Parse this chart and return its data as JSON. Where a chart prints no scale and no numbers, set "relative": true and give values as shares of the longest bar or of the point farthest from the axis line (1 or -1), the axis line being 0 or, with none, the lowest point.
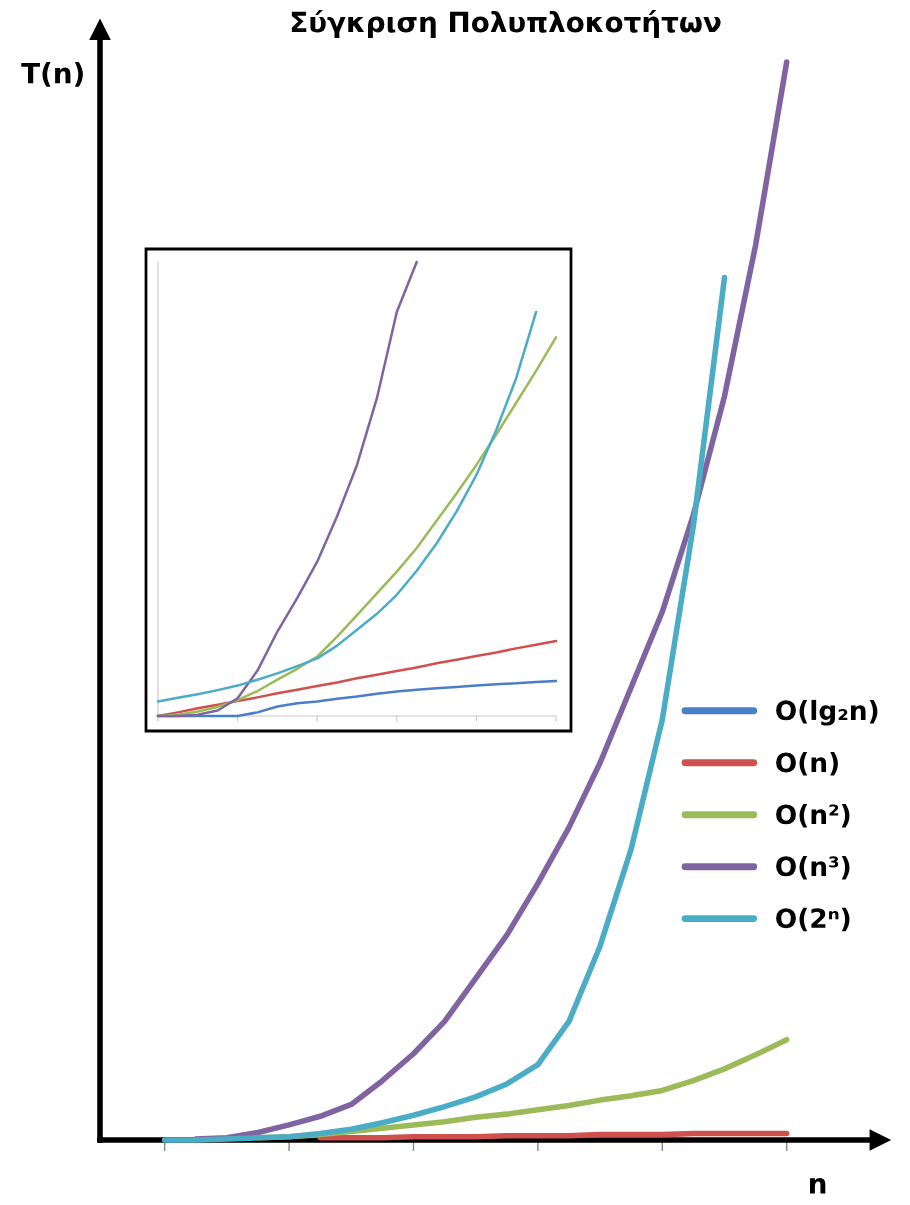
{
  "chart_data": [
    {
      "type": "line",
      "title": "Σύγκριση Πολυπλοκοτήτων",
      "xlabel": "n",
      "ylabel": "T(n)",
      "relative": true,
      "categories": [
        null,
        null,
        null,
        null,
        null,
        null,
        null,
        null,
        null,
        null,
        null,
        null,
        null,
        null,
        null,
        null,
        null,
        null,
        null,
        null,
        null
      ],
      "legend": "right",
      "grid": false,
      "marker": "none",
      "line_style": "solid",
      "series": [
        {
          "name": "O(lg₂n)",
          "color": "#4a7ec9",
          "values": [
            null,
            null,
            null,
            null,
            null,
            null,
            null,
            null,
            null,
            null,
            null,
            null,
            null,
            null,
            null,
            null,
            null,
            null,
            null,
            null,
            null
          ]
        },
        {
          "name": "O(n)",
          "color": "#d0504d",
          "values": [
            null,
            null,
            null,
            null,
            null,
            0.002,
            0.002,
            0.002,
            0.003,
            0.003,
            0.003,
            0.004,
            0.004,
            0.004,
            0.005,
            0.005,
            0.005,
            0.006,
            0.006,
            0.006,
            0.006
          ]
        },
        {
          "name": "O(n²)",
          "color": "#9bbb59",
          "values": [
            null,
            null,
            null,
            0.002,
            0.003,
            0.005,
            0.008,
            0.011,
            0.014,
            0.017,
            0.021,
            0.024,
            0.028,
            0.032,
            0.037,
            0.041,
            0.046,
            0.055,
            0.066,
            0.079,
            0.093
          ]
        },
        {
          "name": "O(n³)",
          "color": "#8064a2",
          "values": [
            null,
            0.001,
            0.002,
            0.007,
            0.014,
            0.022,
            0.033,
            0.055,
            0.08,
            0.11,
            0.15,
            0.19,
            0.238,
            0.29,
            0.35,
            0.42,
            0.49,
            0.58,
            0.69,
            0.83,
            1
          ]
        },
        {
          "name": "O(2ⁿ)",
          "color": "#4bacc6",
          "values": [
            0,
            0,
            0.001,
            0.002,
            0.003,
            0.006,
            0.01,
            0.016,
            0.023,
            0.031,
            0.04,
            0.052,
            0.07,
            0.11,
            0.18,
            0.27,
            0.39,
            0.57,
            0.8,
            null,
            null
          ]
        }
      ]
    },
    {
      "type": "line",
      "relative": true,
      "categories": [
        null,
        null,
        null,
        null,
        null,
        null,
        null,
        null,
        null,
        null,
        null,
        null,
        null,
        null,
        null,
        null,
        null,
        null,
        null,
        null,
        null
      ],
      "grid": false,
      "marker": "none",
      "line_style": "solid",
      "series": [
        {
          "color": "#4a7ec9",
          "values": [
            0,
            0,
            0,
            0,
            0,
            0.008,
            0.021,
            0.028,
            0.032,
            0.038,
            0.043,
            0.049,
            0.054,
            0.058,
            0.061,
            0.064,
            0.067,
            0.07,
            0.072,
            0.075,
            0.077
          ]
        },
        {
          "color": "#d0504d",
          "values": [
            0,
            0.008,
            0.017,
            0.025,
            0.033,
            0.041,
            0.05,
            0.058,
            0.066,
            0.074,
            0.083,
            0.091,
            0.099,
            0.107,
            0.116,
            0.124,
            0.132,
            0.14,
            0.149,
            0.157,
            0.165
          ]
        },
        {
          "color": "#9bbb59",
          "values": [
            0,
            0.003,
            0.01,
            0.02,
            0.035,
            0.055,
            0.08,
            0.104,
            0.131,
            0.175,
            0.222,
            0.27,
            0.318,
            0.37,
            0.43,
            0.49,
            0.553,
            0.62,
            0.69,
            0.76,
            0.834
          ]
        },
        {
          "color": "#8064a2",
          "values": [
            0,
            0,
            0.003,
            0.012,
            0.039,
            0.1,
            0.186,
            0.26,
            0.34,
            0.44,
            0.553,
            0.7,
            0.89,
            1,
            null,
            null,
            null,
            null,
            null,
            null,
            null
          ]
        },
        {
          "color": "#4bacc6",
          "values": [
            0.032,
            0.04,
            0.048,
            0.057,
            0.067,
            0.08,
            0.094,
            0.11,
            0.127,
            0.155,
            0.19,
            0.225,
            0.267,
            0.32,
            0.38,
            0.45,
            0.531,
            0.63,
            0.744,
            0.89,
            null
          ]
        }
      ]
    }
  ]
}
